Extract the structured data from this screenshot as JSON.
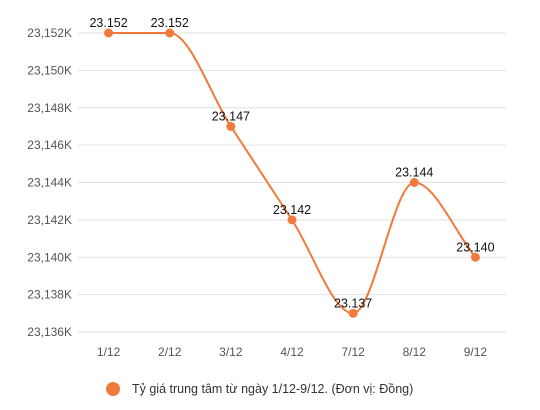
{
  "chart_data": {
    "type": "line",
    "categories": [
      "1/12",
      "2/12",
      "3/12",
      "4/12",
      "7/12",
      "8/12",
      "9/12"
    ],
    "series": [
      {
        "name": "Tỷ giá trung tâm từ ngày 1/12-9/12. (Đơn vị: Đồng)",
        "values": [
          23152,
          23152,
          23147,
          23142,
          23137,
          23144,
          23140
        ],
        "labels": [
          "23.152",
          "23.152",
          "23.147",
          "23.142",
          "23.137",
          "23.144",
          "23.140"
        ],
        "color": "#f07a3c"
      }
    ],
    "y_ticks": [
      23136,
      23138,
      23140,
      23142,
      23144,
      23146,
      23148,
      23150,
      23152
    ],
    "y_tick_labels": [
      "23,136K",
      "23,138K",
      "23,140K",
      "23,142K",
      "23,144K",
      "23,146K",
      "23,148K",
      "23,150K",
      "23,152K"
    ],
    "ylim": [
      23136,
      23152
    ],
    "grid": true,
    "legend_position": "bottom",
    "line_style": "smooth"
  }
}
